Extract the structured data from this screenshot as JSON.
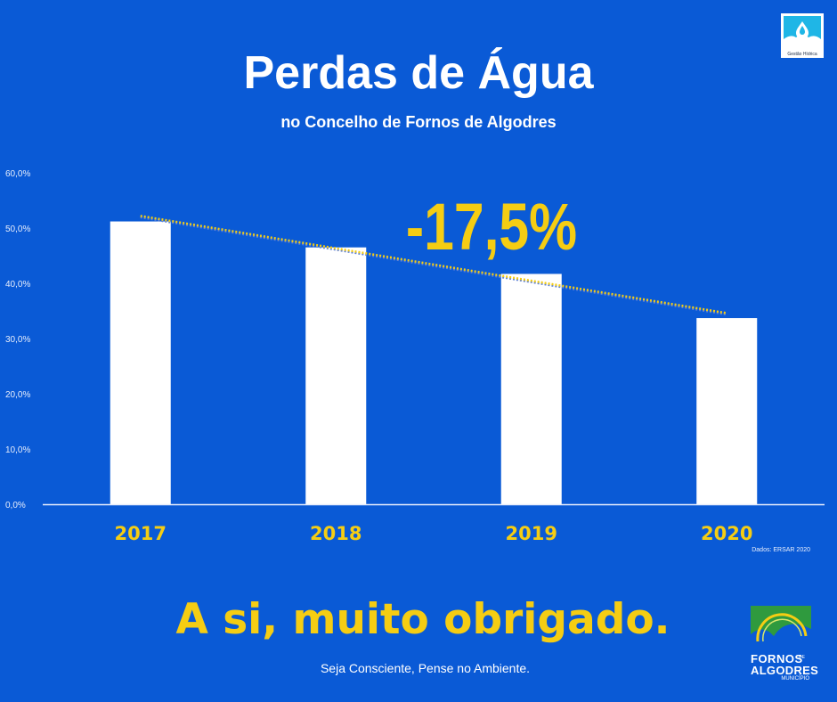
{
  "header": {
    "title": "Perdas de Água",
    "subtitle": "no Concelho de Fornos de Algodres"
  },
  "chart_data": {
    "type": "bar",
    "categories": [
      "2017",
      "2018",
      "2019",
      "2020"
    ],
    "values": [
      51.2,
      46.5,
      41.7,
      33.7
    ],
    "ylim": [
      0,
      60
    ],
    "yticks": [
      "0,0%",
      "10,0%",
      "20,0%",
      "30,0%",
      "40,0%",
      "50,0%",
      "60,0%"
    ],
    "trendline": {
      "start": 52.2,
      "end": 34.6,
      "style": "dotted"
    },
    "annotation": "-17,5%",
    "grid": false,
    "colors": {
      "bar": "#ffffff",
      "category_label": "#f5cd13",
      "annotation": "#f5cd13",
      "trend": "#f5cd13"
    }
  },
  "source_note": "Dados: ERSAR 2020",
  "footer": {
    "thanks": "A si, muito obrigado.",
    "tagline": "Seja Consciente, Pense no Ambiente."
  },
  "badge": {
    "text": "Gestão Hídrica",
    "icon": "water-drop-icon"
  },
  "logo": {
    "line1": "FORNOS",
    "de": "DE",
    "line2": "ALGODRES",
    "line3": "MUNICÍPIO"
  },
  "colors": {
    "background": "#0a5ad6",
    "accent": "#f5cd13"
  }
}
